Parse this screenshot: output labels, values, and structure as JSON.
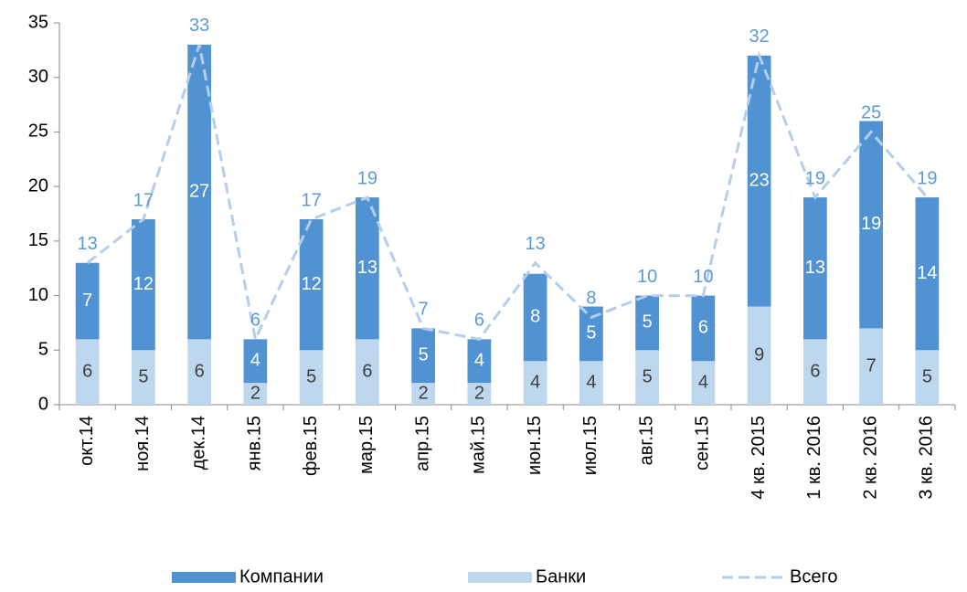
{
  "chart_data": {
    "type": "stacked-bar-line",
    "categories": [
      "окт.14",
      "ноя.14",
      "дек.14",
      "янв.15",
      "фев.15",
      "мар.15",
      "апр.15",
      "май.15",
      "июн.15",
      "июл.15",
      "авг.15",
      "сен.15",
      "4 кв. 2015",
      "1 кв. 2016",
      "2 кв. 2016",
      "3 кв. 2016"
    ],
    "series": [
      {
        "name": "Банки",
        "color": "#bdd7ee",
        "label_color": "#404040",
        "values": [
          6,
          5,
          6,
          2,
          5,
          6,
          2,
          2,
          4,
          4,
          5,
          4,
          9,
          6,
          7,
          5
        ]
      },
      {
        "name": "Компании",
        "color": "#5092d2",
        "label_color": "#ffffff",
        "values": [
          7,
          12,
          27,
          4,
          12,
          13,
          5,
          4,
          8,
          5,
          5,
          6,
          23,
          13,
          19,
          14
        ]
      },
      {
        "name": "Всего",
        "type": "line",
        "dashed": true,
        "color": "#b4cfeb",
        "label_color": "#5b9bd5",
        "values": [
          13,
          17,
          33,
          6,
          17,
          19,
          7,
          6,
          13,
          8,
          10,
          10,
          32,
          19,
          25,
          19
        ]
      }
    ],
    "ylim": [
      0,
      35
    ],
    "yticks": [
      0,
      5,
      10,
      15,
      20,
      25,
      30,
      35
    ],
    "grid": false
  }
}
